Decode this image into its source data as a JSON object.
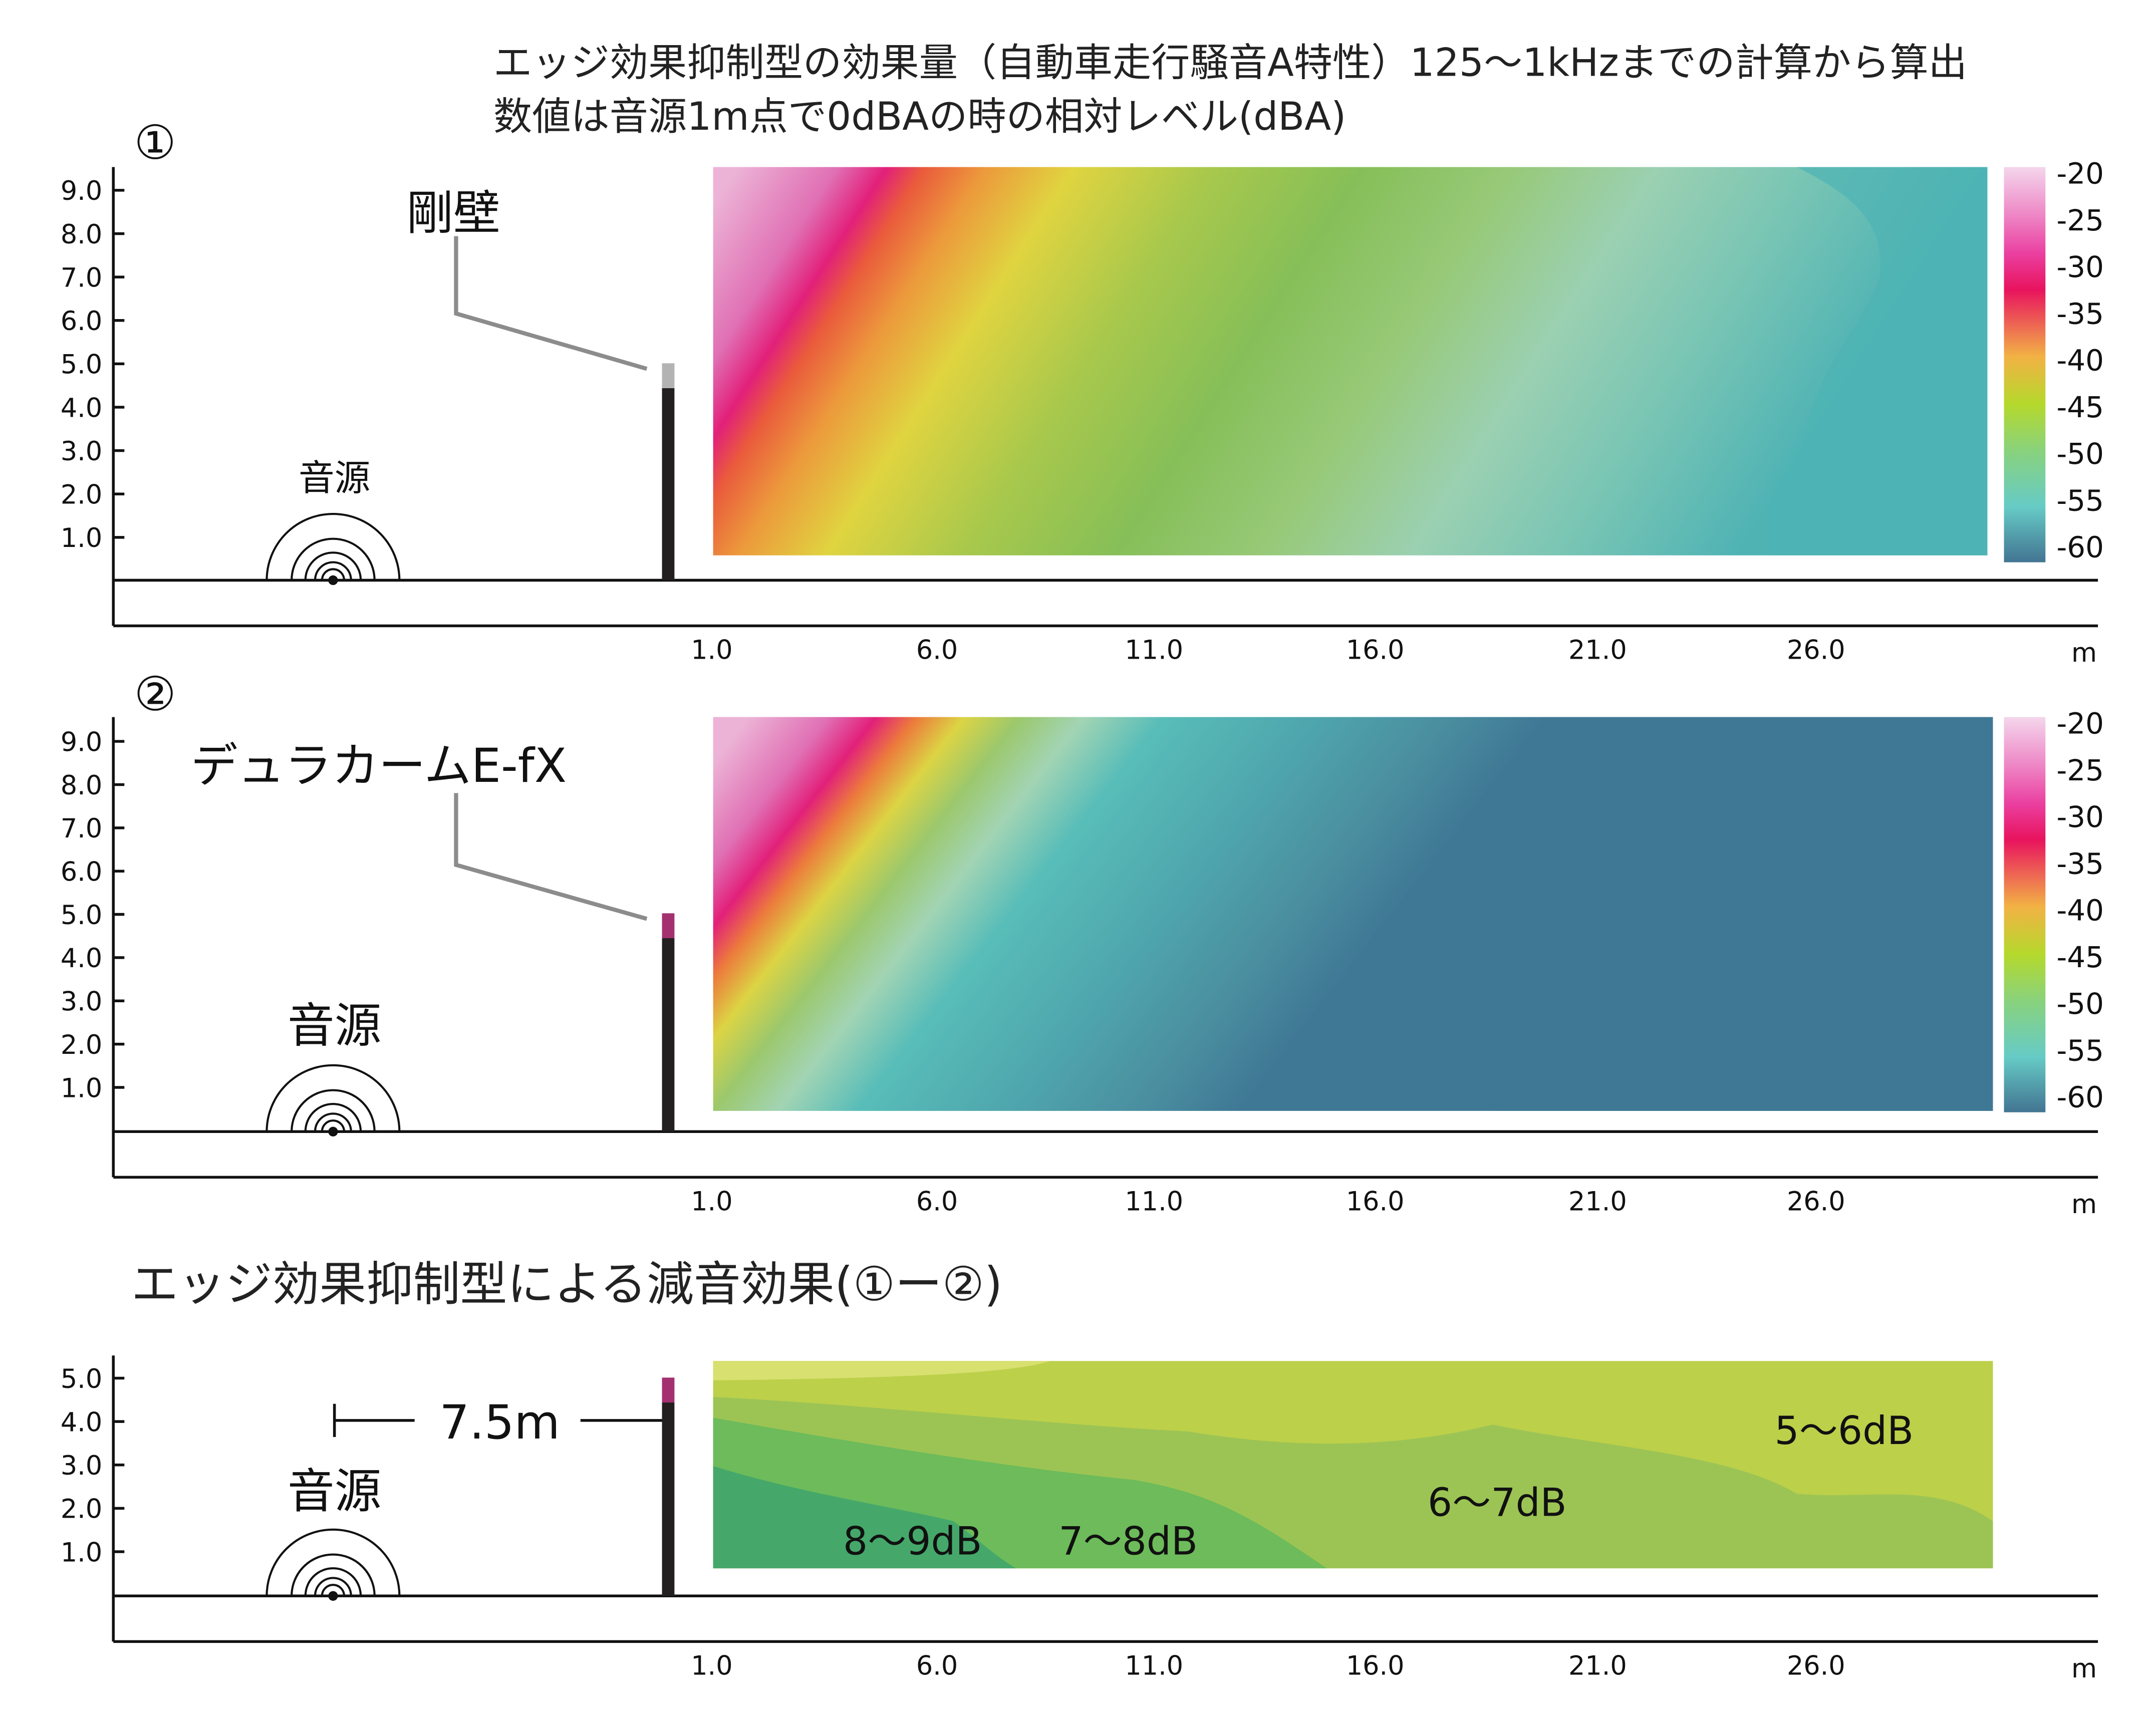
{
  "title": {
    "line1": "エッジ効果抑制型の効果量（自動車走行騒音A特性）125～1kHzまでの計算から算出",
    "line2": "数値は音源1m点で0dBAの時の相対レベル(dBA)"
  },
  "colors": {
    "wall": "#231f20",
    "cap_rigid": "#b3b3b3",
    "cap_product": "#a3306f"
  },
  "chart_data": [
    {
      "type": "heatmap",
      "marker": "①",
      "wall_label": "剛壁",
      "source_label": "音源",
      "xlabel": "m",
      "x_ticks": [
        "1.0",
        "6.0",
        "11.0",
        "16.0",
        "21.0",
        "26.0"
      ],
      "y_ticks": [
        "1.0",
        "2.0",
        "3.0",
        "4.0",
        "5.0",
        "6.0",
        "7.0",
        "8.0",
        "9.0"
      ],
      "xlim": [
        1.0,
        30.0
      ],
      "ylim": [
        0,
        9.5
      ],
      "colorbar": {
        "ticks": [
          "-20",
          "-25",
          "-30",
          "-35",
          "-40",
          "-45",
          "-50",
          "-55",
          "-60"
        ],
        "range": [
          -20,
          -60
        ]
      },
      "description_levels": "pink (-20) top-left near wall, falling diagonally to teal (-58) at far right"
    },
    {
      "type": "heatmap",
      "marker": "②",
      "wall_label": "デュラカームE-fX",
      "source_label": "音源",
      "xlabel": "m",
      "x_ticks": [
        "1.0",
        "6.0",
        "11.0",
        "16.0",
        "21.0",
        "26.0"
      ],
      "y_ticks": [
        "1.0",
        "2.0",
        "3.0",
        "4.0",
        "5.0",
        "6.0",
        "7.0",
        "8.0",
        "9.0"
      ],
      "xlim": [
        1.0,
        30.0
      ],
      "ylim": [
        0,
        9.5
      ],
      "colorbar": {
        "ticks": [
          "-20",
          "-25",
          "-30",
          "-35",
          "-40",
          "-45",
          "-50",
          "-55",
          "-60"
        ],
        "range": [
          -20,
          -60
        ]
      },
      "description_levels": "pink (-20) top-left, rapid fall to dark blue (-60) bottom-right"
    },
    {
      "type": "heatmap",
      "title": "エッジ効果抑制型による減音効果(①ー②)",
      "source_label": "音源",
      "distance_label": "7.5m",
      "xlabel": "m",
      "x_ticks": [
        "1.0",
        "6.0",
        "11.0",
        "16.0",
        "21.0",
        "26.0"
      ],
      "y_ticks": [
        "1.0",
        "2.0",
        "3.0",
        "4.0",
        "5.0"
      ],
      "xlim": [
        1.0,
        30.0
      ],
      "ylim": [
        0,
        5.5
      ],
      "regions": [
        "8～9dB",
        "7～8dB",
        "6～7dB",
        "5～6dB"
      ]
    }
  ]
}
